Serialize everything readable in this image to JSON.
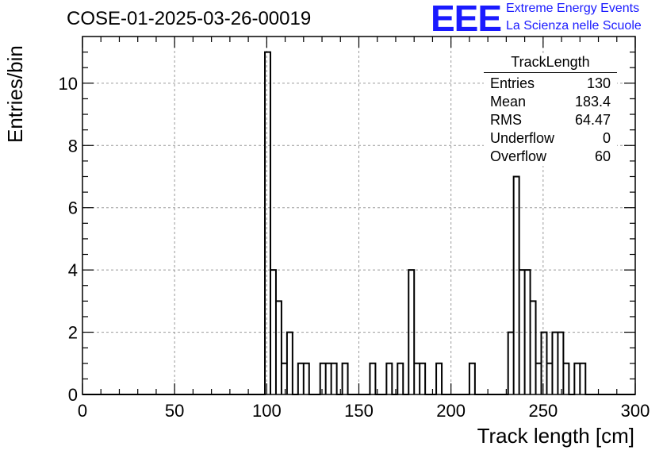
{
  "header": {
    "title": "COSE-01-2025-03-26-00019",
    "logo_text": "EEE",
    "logo_line1": "Extreme Energy Events",
    "logo_line2": "La Scienza nelle Scuole"
  },
  "stats_box": {
    "title": "TrackLength",
    "rows": [
      {
        "label": "Entries",
        "value": "130"
      },
      {
        "label": "Mean",
        "value": "183.4"
      },
      {
        "label": "RMS",
        "value": "64.47"
      },
      {
        "label": "Underflow",
        "value": "0"
      },
      {
        "label": "Overflow",
        "value": "60"
      }
    ]
  },
  "chart_data": {
    "type": "histogram",
    "title": "COSE-01-2025-03-26-00019",
    "xlabel": "Track length [cm]",
    "ylabel": "Entries/bin",
    "xlim": [
      0,
      300
    ],
    "ylim": [
      0,
      11.5
    ],
    "bin_width": 3,
    "grid": true,
    "x_ticks": [
      0,
      50,
      100,
      150,
      200,
      250,
      300
    ],
    "y_ticks": [
      0,
      2,
      4,
      6,
      8,
      10
    ],
    "bins": [
      {
        "x0": 99,
        "count": 11
      },
      {
        "x0": 102,
        "count": 4
      },
      {
        "x0": 105,
        "count": 3
      },
      {
        "x0": 108,
        "count": 1
      },
      {
        "x0": 111,
        "count": 2
      },
      {
        "x0": 114,
        "count": 0
      },
      {
        "x0": 117,
        "count": 1
      },
      {
        "x0": 120,
        "count": 1
      },
      {
        "x0": 129,
        "count": 1
      },
      {
        "x0": 132,
        "count": 1
      },
      {
        "x0": 135,
        "count": 1
      },
      {
        "x0": 141,
        "count": 1
      },
      {
        "x0": 156,
        "count": 1
      },
      {
        "x0": 165,
        "count": 1
      },
      {
        "x0": 171,
        "count": 1
      },
      {
        "x0": 177,
        "count": 4
      },
      {
        "x0": 180,
        "count": 1
      },
      {
        "x0": 183,
        "count": 1
      },
      {
        "x0": 192,
        "count": 1
      },
      {
        "x0": 210,
        "count": 1
      },
      {
        "x0": 231,
        "count": 2
      },
      {
        "x0": 234,
        "count": 7
      },
      {
        "x0": 237,
        "count": 4
      },
      {
        "x0": 240,
        "count": 4
      },
      {
        "x0": 243,
        "count": 3
      },
      {
        "x0": 246,
        "count": 1
      },
      {
        "x0": 249,
        "count": 2
      },
      {
        "x0": 252,
        "count": 1
      },
      {
        "x0": 255,
        "count": 2
      },
      {
        "x0": 258,
        "count": 2
      },
      {
        "x0": 261,
        "count": 1
      },
      {
        "x0": 267,
        "count": 1
      },
      {
        "x0": 270,
        "count": 1
      }
    ],
    "colors": {
      "line": "#000000",
      "grid": "#9a9a9a",
      "logo": "#1a1aff"
    }
  }
}
